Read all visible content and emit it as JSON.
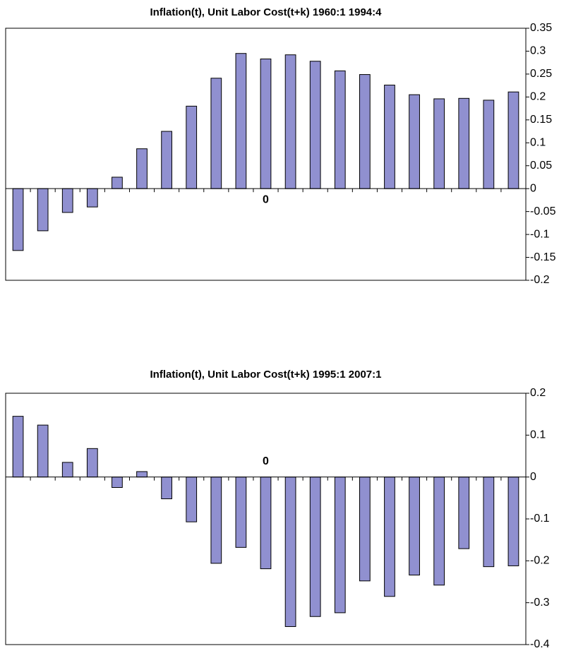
{
  "chart_data": [
    {
      "type": "bar",
      "title": "Inflation(t), Unit Labor Cost(t+k) 1960:1 1994:4",
      "categories": [
        null,
        null,
        null,
        null,
        null,
        null,
        null,
        null,
        null,
        null,
        "0",
        null,
        null,
        null,
        null,
        null,
        null,
        null,
        null,
        null,
        null
      ],
      "values": [
        -0.135,
        -0.092,
        -0.052,
        -0.04,
        0.025,
        0.087,
        0.125,
        0.18,
        0.241,
        0.295,
        0.283,
        0.292,
        0.278,
        0.257,
        0.249,
        0.226,
        0.205,
        0.196,
        0.197,
        0.193,
        0.211
      ],
      "color": "#9090d0",
      "ylim": [
        -0.2,
        0.35
      ],
      "yticks": [
        -0.2,
        -0.15,
        -0.1,
        -0.05,
        0,
        0.05,
        0.1,
        0.15,
        0.2,
        0.25,
        0.3,
        0.35
      ]
    },
    {
      "type": "bar",
      "title": "Inflation(t), Unit Labor Cost(t+k) 1995:1 2007:1",
      "categories": [
        null,
        null,
        null,
        null,
        null,
        null,
        null,
        null,
        null,
        null,
        "0",
        null,
        null,
        null,
        null,
        null,
        null,
        null,
        null,
        null,
        null
      ],
      "values": [
        0.145,
        0.124,
        0.035,
        0.068,
        -0.025,
        0.013,
        -0.052,
        -0.107,
        -0.206,
        -0.168,
        -0.219,
        -0.357,
        -0.333,
        -0.324,
        -0.248,
        -0.285,
        -0.234,
        -0.258,
        -0.171,
        -0.214,
        -0.212
      ],
      "color": "#9090d0",
      "ylim": [
        -0.4,
        0.2
      ],
      "yticks": [
        -0.4,
        -0.3,
        -0.2,
        -0.1,
        0,
        0.1,
        0.2
      ]
    }
  ]
}
